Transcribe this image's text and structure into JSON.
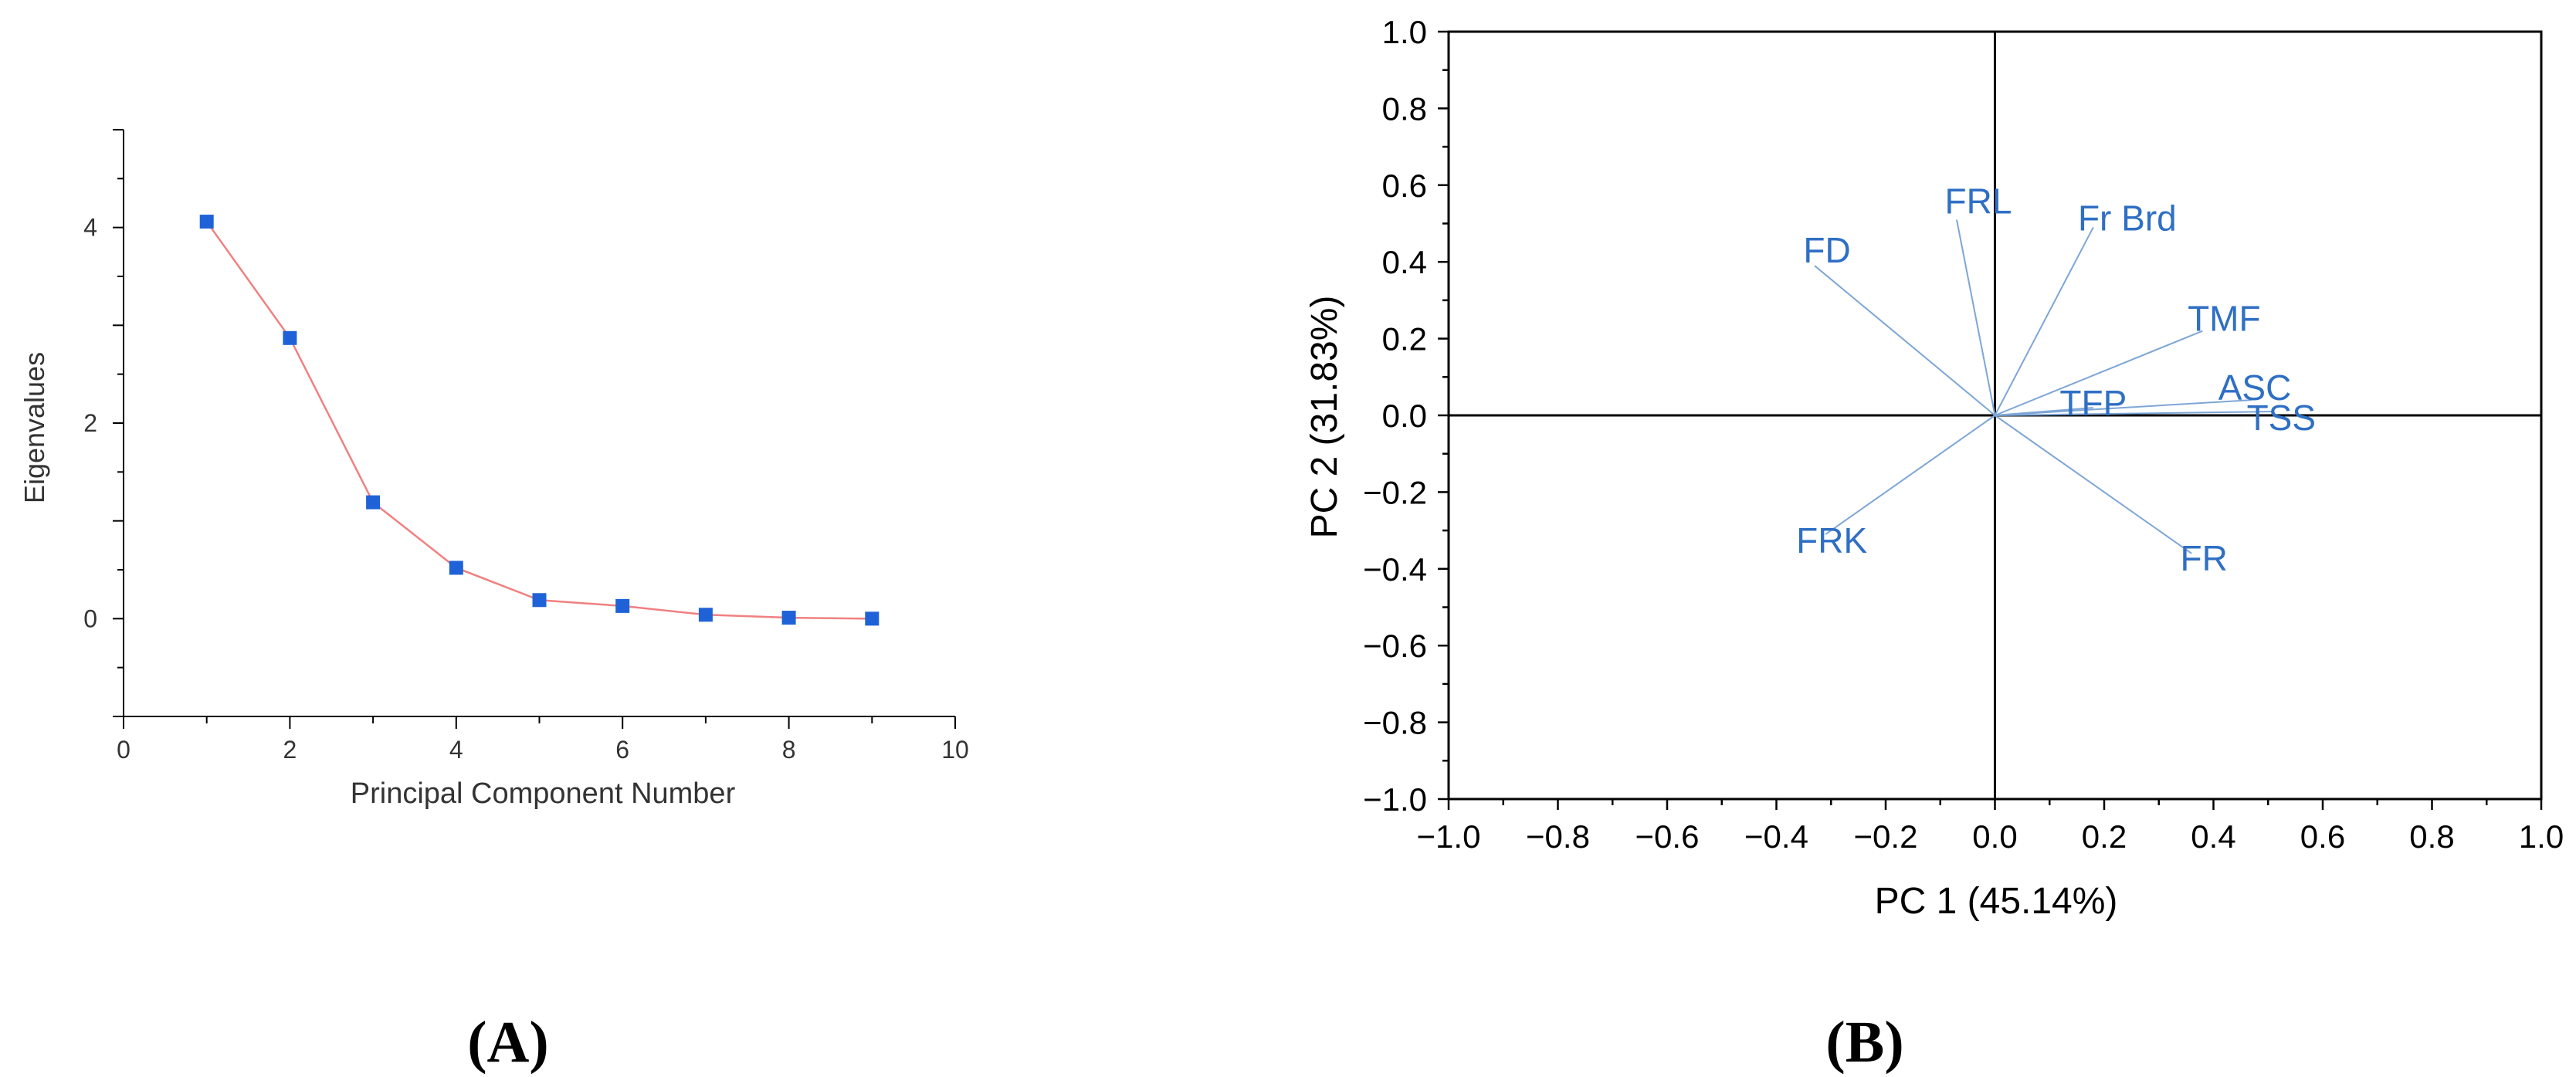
{
  "chart_data": [
    {
      "panel": "A",
      "type": "line",
      "xlabel": "Principal Component Number",
      "ylabel": "Eigenvalues",
      "xlim": [
        0,
        10
      ],
      "ylim": [
        -1,
        5
      ],
      "xticks": [
        0,
        2,
        4,
        6,
        8,
        10
      ],
      "yticks": [
        0,
        2,
        4
      ],
      "x": [
        1,
        2,
        3,
        4,
        5,
        6,
        7,
        8,
        9
      ],
      "series": [
        {
          "values": [
            4.06,
            2.87,
            1.19,
            0.52,
            0.19,
            0.13,
            0.04,
            0.01,
            0.0
          ],
          "marker_color": "#1f62d8",
          "line_color": "#f08080"
        }
      ]
    },
    {
      "panel": "B",
      "type": "scatter",
      "subtype": "biplot-loadings",
      "xlabel": "PC 1 (45.14%)",
      "ylabel": "PC 2 (31.83%)",
      "xlim": [
        -1.0,
        1.0
      ],
      "ylim": [
        -1.0,
        1.0
      ],
      "xticks": [
        "−1.0",
        "−0.8",
        "−0.6",
        "−0.4",
        "−0.2",
        "0.0",
        "0.2",
        "0.4",
        "0.6",
        "0.8",
        "1.0"
      ],
      "yticks": [
        "−1.0",
        "−0.8",
        "−0.6",
        "−0.4",
        "−0.2",
        "0.0",
        "0.2",
        "0.4",
        "0.6",
        "0.8",
        "1.0"
      ],
      "label_color": "#2f6fc4",
      "vector_color": "#7ea6d6",
      "vectors": [
        {
          "name": "FD",
          "x": -0.33,
          "y": 0.39
        },
        {
          "name": "FRL",
          "x": -0.07,
          "y": 0.51
        },
        {
          "name": "Fr Brd",
          "x": 0.18,
          "y": 0.49
        },
        {
          "name": "TMF",
          "x": 0.38,
          "y": 0.22
        },
        {
          "name": "TFP",
          "x": 0.18,
          "y": 0.02
        },
        {
          "name": "ASC",
          "x": 0.47,
          "y": 0.04
        },
        {
          "name": "TSS",
          "x": 0.51,
          "y": 0.01
        },
        {
          "name": "FRK",
          "x": -0.31,
          "y": -0.31
        },
        {
          "name": "FR",
          "x": 0.36,
          "y": -0.36
        }
      ]
    }
  ],
  "panel_labels": {
    "a": "(A)",
    "b": "(B)"
  }
}
